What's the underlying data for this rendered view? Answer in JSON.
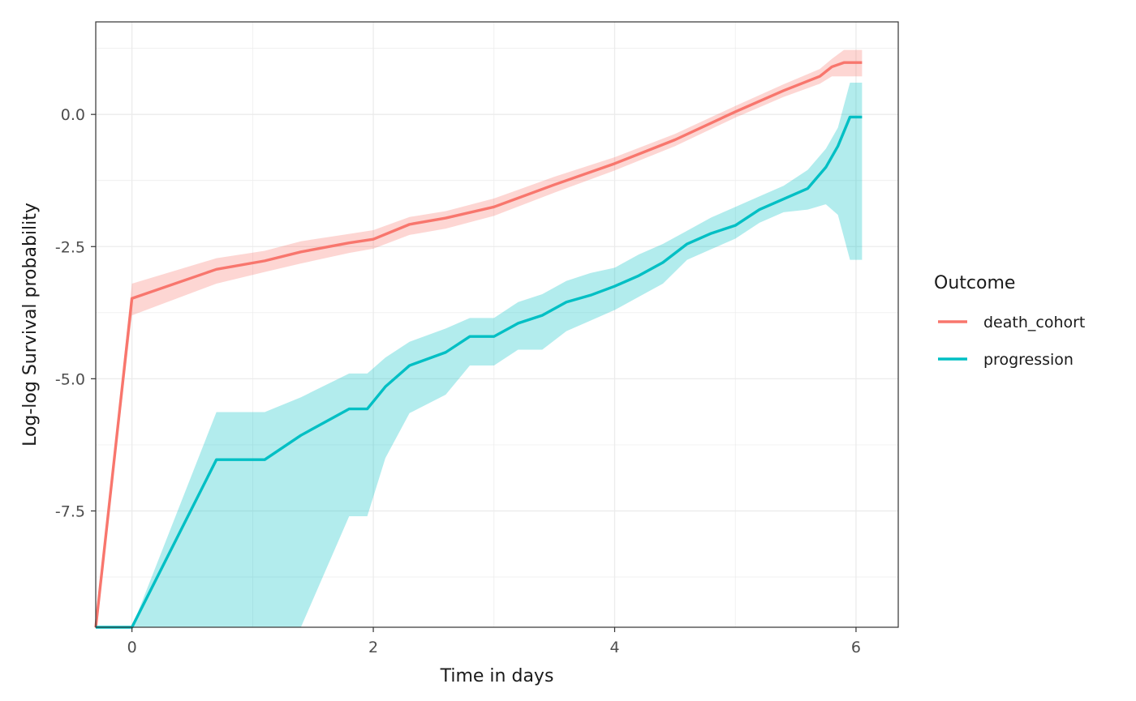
{
  "chart_data": {
    "type": "line",
    "title": "",
    "xlabel": "Time in days",
    "ylabel": "Log-log Survival probability",
    "xlim": [
      -0.3,
      6.35
    ],
    "ylim": [
      -9.7,
      1.75
    ],
    "x_ticks": [
      0,
      2,
      4,
      6
    ],
    "x_tick_labels": [
      "0",
      "2",
      "4",
      "6"
    ],
    "y_ticks": [
      0.0,
      -2.5,
      -5.0,
      -7.5
    ],
    "y_tick_labels": [
      "0.0",
      "-2.5",
      "-5.0",
      "-7.5"
    ],
    "grid": true,
    "theme": "bw",
    "legend": {
      "title": "Outcome",
      "placement": "right",
      "entries": [
        "death_cohort",
        "progression"
      ]
    },
    "series": [
      {
        "name": "death_cohort",
        "color": "#F8766D",
        "band_color": "#F8766D",
        "x": [
          -0.3,
          0.0,
          0.7,
          1.1,
          1.4,
          1.8,
          2.0,
          2.3,
          2.6,
          3.0,
          3.5,
          4.0,
          4.5,
          5.0,
          5.4,
          5.7,
          5.8,
          5.9,
          6.05
        ],
        "y": [
          -9.7,
          -3.48,
          -2.93,
          -2.77,
          -2.6,
          -2.43,
          -2.36,
          -2.08,
          -1.96,
          -1.75,
          -1.33,
          -0.93,
          -0.48,
          0.05,
          0.45,
          0.72,
          0.9,
          0.98,
          0.98
        ],
        "lower": [
          -9.7,
          -3.8,
          -3.2,
          -2.98,
          -2.82,
          -2.62,
          -2.54,
          -2.28,
          -2.16,
          -1.92,
          -1.48,
          -1.06,
          -0.6,
          -0.06,
          0.33,
          0.58,
          0.72,
          0.72,
          0.72
        ],
        "upper": [
          -9.7,
          -3.2,
          -2.72,
          -2.58,
          -2.4,
          -2.26,
          -2.19,
          -1.94,
          -1.83,
          -1.59,
          -1.18,
          -0.81,
          -0.37,
          0.16,
          0.57,
          0.86,
          1.05,
          1.22,
          1.22
        ]
      },
      {
        "name": "progression",
        "color": "#00BFC4",
        "band_color": "#00BFC4",
        "x": [
          -0.3,
          0.0,
          0.7,
          1.1,
          1.4,
          1.8,
          1.95,
          2.1,
          2.3,
          2.6,
          2.8,
          3.0,
          3.2,
          3.4,
          3.6,
          3.8,
          4.0,
          4.2,
          4.4,
          4.6,
          4.8,
          5.0,
          5.2,
          5.4,
          5.6,
          5.75,
          5.85,
          5.95,
          6.05
        ],
        "y": [
          -9.7,
          -9.7,
          -6.53,
          -6.53,
          -6.07,
          -5.57,
          -5.57,
          -5.15,
          -4.75,
          -4.5,
          -4.2,
          -4.2,
          -3.95,
          -3.8,
          -3.55,
          -3.42,
          -3.25,
          -3.05,
          -2.8,
          -2.45,
          -2.25,
          -2.1,
          -1.8,
          -1.6,
          -1.4,
          -1.0,
          -0.6,
          -0.05,
          -0.05
        ],
        "lower": [
          -9.7,
          -9.7,
          -9.7,
          -9.7,
          -9.7,
          -7.6,
          -7.6,
          -6.5,
          -5.65,
          -5.3,
          -4.75,
          -4.75,
          -4.45,
          -4.45,
          -4.1,
          -3.9,
          -3.7,
          -3.45,
          -3.2,
          -2.75,
          -2.55,
          -2.35,
          -2.05,
          -1.85,
          -1.8,
          -1.7,
          -1.9,
          -2.75,
          -2.75
        ],
        "upper": [
          -9.7,
          -9.7,
          -5.63,
          -5.63,
          -5.35,
          -4.9,
          -4.9,
          -4.6,
          -4.3,
          -4.05,
          -3.85,
          -3.85,
          -3.55,
          -3.4,
          -3.15,
          -3.0,
          -2.9,
          -2.65,
          -2.45,
          -2.2,
          -1.95,
          -1.75,
          -1.55,
          -1.35,
          -1.05,
          -0.65,
          -0.25,
          0.6,
          0.6
        ]
      }
    ]
  }
}
